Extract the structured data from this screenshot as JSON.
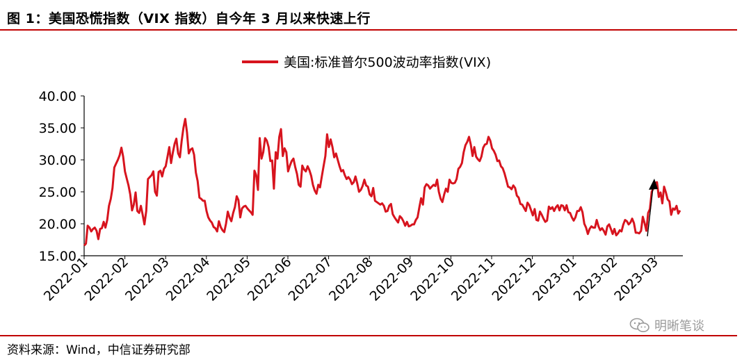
{
  "figure_title": "图 1：美国恐慌指数（VIX 指数）自今年 3 月以来快速上行",
  "source_note": "资料来源：Wind，中信证券研究部",
  "watermark": {
    "text": "明晰笔谈",
    "icon": "wechat-icon"
  },
  "colors": {
    "series": "#d7141e",
    "rule": "#c00000",
    "axis": "#000000",
    "arrow": "#000000"
  },
  "chart_data": {
    "type": "line",
    "title": "",
    "xlabel": "",
    "ylabel": "",
    "ylim": [
      15,
      40
    ],
    "yticks": [
      "15.00",
      "20.00",
      "25.00",
      "30.00",
      "35.00",
      "40.00"
    ],
    "xticks": [
      "2022-01",
      "2022-02",
      "2022-03",
      "2022-04",
      "2022-05",
      "2022-06",
      "2022-07",
      "2022-08",
      "2022-09",
      "2022-10",
      "2022-11",
      "2022-12",
      "2023-01",
      "2023-02",
      "2023-03"
    ],
    "grid": false,
    "legend_position": "top-center",
    "annotation": "upward-arrow near 2023-03",
    "series": [
      {
        "name": "美国:标准普尔500波动率指数(VIX)",
        "color": "#d7141e",
        "x_start": "2022-01-03",
        "values": [
          16.6,
          16.9,
          19.7,
          19.4,
          18.8,
          19.2,
          19.4,
          18.9,
          17.6,
          19.2,
          19.3,
          20.3,
          19.4,
          20.6,
          22.8,
          23.9,
          25.6,
          28.8,
          29.4,
          30.0,
          30.7,
          31.9,
          30.5,
          28.2,
          27.1,
          26.0,
          24.6,
          22.1,
          23.0,
          24.9,
          22.0,
          21.7,
          22.8,
          21.4,
          19.9,
          22.0,
          27.0,
          27.3,
          27.6,
          28.2,
          25.0,
          24.4,
          28.1,
          28.3,
          27.4,
          28.6,
          29.0,
          30.5,
          32.0,
          29.5,
          31.1,
          32.5,
          33.3,
          31.0,
          30.4,
          33.0,
          35.0,
          36.4,
          34.3,
          31.0,
          31.6,
          31.8,
          30.8,
          28.0,
          26.7,
          24.1,
          23.9,
          23.6,
          23.6,
          22.0,
          21.0,
          20.5,
          20.2,
          19.5,
          19.3,
          18.8,
          20.4,
          19.5,
          19.0,
          18.7,
          20.0,
          21.9,
          21.0,
          20.4,
          21.7,
          22.6,
          24.3,
          23.7,
          21.0,
          22.4,
          22.7,
          22.8,
          22.4,
          22.1,
          21.8,
          21.4,
          28.3,
          27.6,
          25.3,
          33.4,
          30.2,
          31.2,
          33.4,
          33.0,
          32.0,
          29.8,
          29.9,
          25.5,
          31.2,
          30.2,
          33.6,
          34.8,
          30.6,
          31.8,
          31.2,
          28.2,
          29.1,
          29.8,
          30.2,
          28.9,
          27.8,
          26.1,
          25.8,
          29.1,
          28.5,
          28.2,
          29.0,
          28.4,
          27.5,
          26.1,
          25.2,
          24.7,
          26.1,
          25.7,
          27.4,
          29.0,
          30.6,
          34.0,
          32.0,
          33.2,
          32.0,
          30.4,
          31.0,
          30.0,
          29.0,
          28.2,
          28.4,
          27.6,
          27.0,
          27.3,
          26.9,
          26.2,
          26.5,
          27.4,
          26.3,
          25.0,
          25.3,
          25.9,
          26.9,
          26.0,
          25.8,
          24.6,
          24.3,
          25.6,
          23.6,
          23.4,
          23.2,
          23.0,
          23.2,
          22.8,
          21.9,
          22.0,
          22.8,
          23.1,
          21.5,
          21.0,
          20.6,
          20.2,
          21.2,
          20.9,
          20.4,
          19.7,
          20.3,
          19.6,
          19.7,
          19.9,
          19.9,
          20.6,
          21.0,
          22.6,
          24.0,
          23.0,
          25.7,
          26.2,
          26.0,
          25.5,
          25.8,
          26.1,
          25.9,
          26.9,
          25.0,
          23.9,
          23.4,
          24.6,
          25.5,
          25.0,
          26.9,
          26.4,
          26.3,
          26.4,
          27.0,
          28.6,
          28.9,
          29.5,
          31.2,
          32.3,
          32.8,
          33.6,
          32.4,
          30.6,
          32.0,
          30.5,
          30.1,
          29.8,
          30.5,
          31.9,
          32.4,
          32.5,
          33.6,
          33.0,
          31.8,
          31.4,
          30.8,
          29.8,
          29.9,
          29.0,
          28.7,
          27.9,
          26.9,
          25.8,
          25.7,
          25.4,
          26.0,
          25.6,
          24.4,
          24.1,
          23.1,
          23.0,
          22.5,
          22.0,
          23.3,
          22.9,
          22.1,
          21.3,
          22.3,
          20.6,
          20.5,
          21.9,
          21.4,
          20.8,
          20.3,
          20.5,
          22.7,
          22.3,
          22.6,
          22.0,
          22.6,
          22.9,
          22.1,
          22.9,
          22.8,
          22.1,
          22.9,
          21.8,
          21.7,
          21.0,
          20.5,
          21.0,
          22.0,
          22.0,
          22.6,
          21.8,
          20.0,
          19.4,
          18.4,
          19.2,
          19.6,
          19.4,
          19.4,
          20.6,
          19.6,
          19.0,
          19.3,
          18.9,
          18.3,
          19.6,
          19.9,
          19.2,
          18.4,
          19.2,
          18.2,
          18.5,
          19.0,
          18.8,
          19.9,
          20.6,
          20.4,
          19.9,
          20.2,
          20.8,
          20.1,
          18.6,
          18.6,
          18.5,
          18.9,
          21.1,
          20.1,
          18.9,
          21.7,
          22.3,
          25.0,
          25.6,
          26.4,
          26.5,
          24.2,
          24.9,
          23.2,
          25.8,
          24.9,
          23.8,
          23.5,
          21.4,
          22.4,
          22.2,
          22.8,
          21.6,
          22.1
        ]
      }
    ]
  }
}
